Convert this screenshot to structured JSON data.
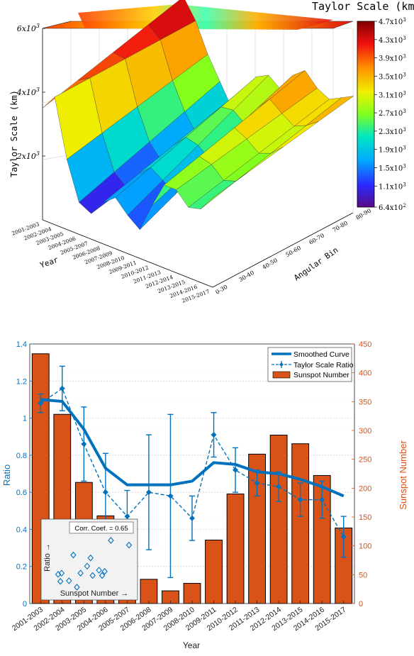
{
  "chart_data": [
    {
      "type": "surface3d",
      "colorbar_title": "Taylor Scale (km)",
      "zlabel": "Taylor Scale (km)",
      "xlabel": "Year",
      "ylabel": "Angular Bin",
      "z_ticks": [
        {
          "value": 2000,
          "label_base": "2x10",
          "label_exp": "3"
        },
        {
          "value": 4000,
          "label_base": "4x10",
          "label_exp": "3"
        },
        {
          "value": 6000,
          "label_base": "6x10",
          "label_exp": "3"
        }
      ],
      "colorbar_ticks": [
        {
          "value": 4700,
          "base": "4.7x10",
          "exp": "3"
        },
        {
          "value": 4300,
          "base": "4.3x10",
          "exp": "3"
        },
        {
          "value": 3900,
          "base": "3.9x10",
          "exp": "3"
        },
        {
          "value": 3500,
          "base": "3.5x10",
          "exp": "3"
        },
        {
          "value": 3100,
          "base": "3.1x10",
          "exp": "3"
        },
        {
          "value": 2700,
          "base": "2.7x10",
          "exp": "3"
        },
        {
          "value": 2300,
          "base": "2.3x10",
          "exp": "3"
        },
        {
          "value": 1900,
          "base": "1.9x10",
          "exp": "3"
        },
        {
          "value": 1500,
          "base": "1.5x10",
          "exp": "3"
        },
        {
          "value": 1100,
          "base": "1.1x10",
          "exp": "3"
        },
        {
          "value": 640,
          "base": "6.4x10",
          "exp": "2"
        }
      ],
      "color_range": [
        640,
        4700
      ],
      "x_categories": [
        "2001-2003",
        "2002-2004",
        "2003-2005",
        "2004-2006",
        "2005-2007",
        "2006-2008",
        "2007-2009",
        "2008-2010",
        "2009-2011",
        "2010-2012",
        "2011-2013",
        "2012-2014",
        "2013-2015",
        "2014-2016",
        "2015-2017"
      ],
      "y_categories": [
        "0-30",
        "30-40",
        "40-50",
        "50-60",
        "60-70",
        "70-80",
        "80-90"
      ],
      "zlim": [
        0,
        6000
      ],
      "z_values_front": [
        3500,
        4000,
        2200,
        1000,
        800,
        1300,
        1600,
        1200,
        900,
        1800,
        2600,
        2600,
        2200,
        2300,
        2800
      ],
      "z_values_back": [
        4700,
        4100,
        3200,
        2500,
        1800,
        2600,
        3100,
        3300,
        3000,
        3600,
        3900,
        3500,
        3300,
        3500,
        3700
      ]
    },
    {
      "type": "bar+line",
      "xlabel": "Year",
      "ylabel_left": "Ratio",
      "ylabel_right": "Sunspot Number",
      "categories": [
        "2001-2003",
        "2002-2004",
        "2003-2005",
        "2004-2006",
        "2005-2007",
        "2006-2008",
        "2007-2009",
        "2008-2010",
        "2009-2011",
        "2010-2012",
        "2011-2013",
        "2012-2014",
        "2013-2015",
        "2014-2016",
        "2015-2017"
      ],
      "ylim_left": [
        0,
        1.4
      ],
      "yticks_left": [
        "0",
        "0.2",
        "0.4",
        "0.6",
        "0.8",
        "1",
        "1.2",
        "1.4"
      ],
      "ylim_right": [
        0,
        450
      ],
      "yticks_right": [
        "0",
        "50",
        "100",
        "150",
        "200",
        "250",
        "300",
        "350",
        "400",
        "450"
      ],
      "grid": true,
      "legend_position": "top-right",
      "series": [
        {
          "name": "Smoothed Curve",
          "kind": "line",
          "color": "#0072BD",
          "values": [
            1.1,
            1.09,
            0.94,
            0.73,
            0.64,
            0.64,
            0.64,
            0.66,
            0.76,
            0.75,
            0.71,
            0.7,
            0.67,
            0.63,
            0.58
          ]
        },
        {
          "name": "Taylor Scale Ratio",
          "kind": "errorbar",
          "color": "#0072BD",
          "values": [
            1.08,
            1.16,
            0.86,
            0.6,
            0.47,
            0.6,
            0.58,
            0.46,
            0.91,
            0.72,
            0.65,
            0.63,
            0.56,
            0.56,
            0.36
          ],
          "errors": [
            0.05,
            0.12,
            0.2,
            0.21,
            0.14,
            0.31,
            0.44,
            0.12,
            0.12,
            0.12,
            0.07,
            0.08,
            0.09,
            0.1,
            0.11
          ]
        },
        {
          "name": "Sunspot Number",
          "kind": "bar",
          "color": "#D95319",
          "values": [
            433,
            328,
            210,
            152,
            85,
            42,
            22,
            35,
            110,
            190,
            259,
            292,
            277,
            222,
            131
          ]
        }
      ],
      "inset": {
        "label": "Corr. Coef. = 0.65",
        "xlabel": "Sunspot Number →",
        "ylabel": "Ratio →",
        "points": [
          [
            433,
            1.08
          ],
          [
            328,
            1.16
          ],
          [
            210,
            0.86
          ],
          [
            152,
            0.6
          ],
          [
            85,
            0.47
          ],
          [
            42,
            0.6
          ],
          [
            22,
            0.58
          ],
          [
            35,
            0.46
          ],
          [
            110,
            0.91
          ],
          [
            190,
            0.72
          ],
          [
            259,
            0.65
          ],
          [
            292,
            0.63
          ],
          [
            277,
            0.56
          ],
          [
            222,
            0.56
          ],
          [
            131,
            0.36
          ]
        ]
      }
    }
  ]
}
